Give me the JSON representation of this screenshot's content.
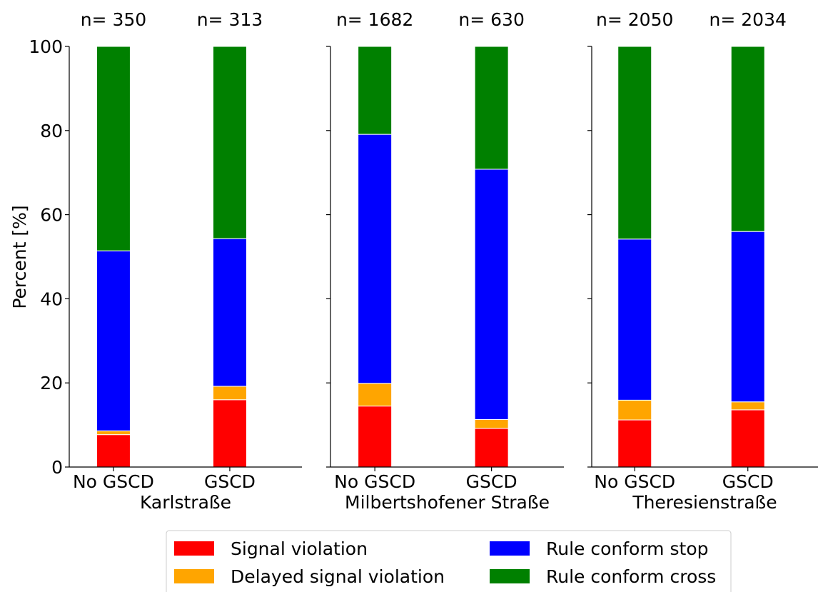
{
  "chart_data": {
    "type": "bar",
    "stacked": true,
    "ylabel": "Percent [%]",
    "ylim": [
      0,
      100
    ],
    "yticks": [
      0,
      20,
      40,
      60,
      80,
      100
    ],
    "grid": false,
    "legend_position": "bottom",
    "series": [
      {
        "name": "Signal violation",
        "color": "#ff0000"
      },
      {
        "name": "Delayed signal violation",
        "color": "#ffa500"
      },
      {
        "name": "Rule conform stop",
        "color": "#0000ff"
      },
      {
        "name": "Rule conform cross",
        "color": "#008000"
      }
    ],
    "panels": [
      {
        "site": "Karlstraße",
        "categories": [
          "No GSCD",
          "GSCD"
        ],
        "n_labels": [
          "n= 350",
          "n= 313"
        ],
        "values": [
          [
            7.7,
            0.9,
            42.8,
            48.6
          ],
          [
            16.0,
            3.2,
            35.1,
            45.7
          ]
        ]
      },
      {
        "site": "Milbertshofener Straße",
        "categories": [
          "No GSCD",
          "GSCD"
        ],
        "n_labels": [
          "n= 1682",
          "n= 630"
        ],
        "values": [
          [
            14.5,
            5.4,
            59.2,
            20.9
          ],
          [
            9.2,
            2.1,
            59.5,
            29.2
          ]
        ]
      },
      {
        "site": "Theresienstraße",
        "categories": [
          "No GSCD",
          "GSCD"
        ],
        "n_labels": [
          "n= 2050",
          "n= 2034"
        ],
        "values": [
          [
            11.2,
            4.7,
            38.3,
            45.8
          ],
          [
            13.6,
            1.9,
            40.5,
            44.0
          ]
        ]
      }
    ]
  }
}
